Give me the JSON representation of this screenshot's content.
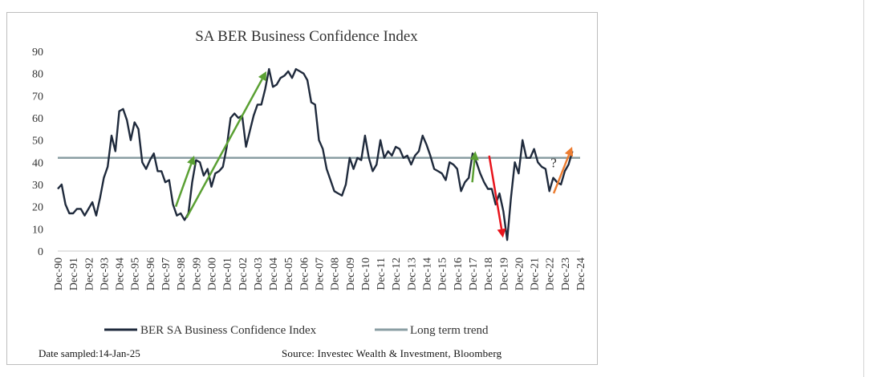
{
  "chart_data": {
    "type": "line",
    "title": "SA BER Business Confidence Index",
    "ylim": [
      0,
      90
    ],
    "y_ticks": [
      0,
      10,
      20,
      30,
      40,
      50,
      60,
      70,
      80,
      90
    ],
    "x_ticks": [
      "Dec-90",
      "Dec-91",
      "Dec-92",
      "Dec-93",
      "Dec-94",
      "Dec-95",
      "Dec-96",
      "Dec-97",
      "Dec-98",
      "Dec-99",
      "Dec-00",
      "Dec-01",
      "Dec-02",
      "Dec-03",
      "Dec-04",
      "Dec-05",
      "Dec-06",
      "Dec-07",
      "Dec-08",
      "Dec-09",
      "Dec-10",
      "Dec-11",
      "Dec-12",
      "Dec-13",
      "Dec-14",
      "Dec-15",
      "Dec-16",
      "Dec-17",
      "Dec-18",
      "Dec-19",
      "Dec-20",
      "Dec-21",
      "Dec-22",
      "Dec-23",
      "Dec-24"
    ],
    "grid": false,
    "legend_position": "bottom",
    "series": [
      {
        "name": "BER SA Business Confidence Index",
        "color": "#1f2a3c",
        "points": [
          [
            1990.92,
            28
          ],
          [
            1991.17,
            30
          ],
          [
            1991.42,
            21
          ],
          [
            1991.67,
            17
          ],
          [
            1991.92,
            17
          ],
          [
            1992.17,
            19
          ],
          [
            1992.42,
            19
          ],
          [
            1992.67,
            16
          ],
          [
            1992.92,
            19
          ],
          [
            1993.17,
            22
          ],
          [
            1993.42,
            16
          ],
          [
            1993.67,
            24
          ],
          [
            1993.92,
            33
          ],
          [
            1994.17,
            38
          ],
          [
            1994.42,
            52
          ],
          [
            1994.67,
            45
          ],
          [
            1994.92,
            63
          ],
          [
            1995.17,
            64
          ],
          [
            1995.42,
            59
          ],
          [
            1995.67,
            50
          ],
          [
            1995.92,
            58
          ],
          [
            1996.17,
            55
          ],
          [
            1996.42,
            40
          ],
          [
            1996.67,
            37
          ],
          [
            1996.92,
            41
          ],
          [
            1997.17,
            44
          ],
          [
            1997.42,
            36
          ],
          [
            1997.67,
            36
          ],
          [
            1997.92,
            31
          ],
          [
            1998.17,
            32
          ],
          [
            1998.42,
            21
          ],
          [
            1998.67,
            16
          ],
          [
            1998.92,
            17
          ],
          [
            1999.17,
            14
          ],
          [
            1999.42,
            17
          ],
          [
            1999.67,
            31
          ],
          [
            1999.92,
            41
          ],
          [
            2000.17,
            40
          ],
          [
            2000.42,
            34
          ],
          [
            2000.67,
            37
          ],
          [
            2000.92,
            29
          ],
          [
            2001.17,
            35
          ],
          [
            2001.42,
            36
          ],
          [
            2001.67,
            38
          ],
          [
            2001.92,
            47
          ],
          [
            2002.17,
            60
          ],
          [
            2002.42,
            62
          ],
          [
            2002.67,
            60
          ],
          [
            2002.92,
            61
          ],
          [
            2003.17,
            47
          ],
          [
            2003.42,
            54
          ],
          [
            2003.67,
            61
          ],
          [
            2003.92,
            66
          ],
          [
            2004.17,
            66
          ],
          [
            2004.42,
            73
          ],
          [
            2004.67,
            82
          ],
          [
            2004.92,
            74
          ],
          [
            2005.17,
            75
          ],
          [
            2005.42,
            78
          ],
          [
            2005.67,
            79
          ],
          [
            2005.92,
            81
          ],
          [
            2006.17,
            78
          ],
          [
            2006.42,
            82
          ],
          [
            2006.67,
            81
          ],
          [
            2006.92,
            80
          ],
          [
            2007.17,
            77
          ],
          [
            2007.42,
            67
          ],
          [
            2007.67,
            66
          ],
          [
            2007.92,
            50
          ],
          [
            2008.17,
            46
          ],
          [
            2008.42,
            37
          ],
          [
            2008.67,
            32
          ],
          [
            2008.92,
            27
          ],
          [
            2009.17,
            26
          ],
          [
            2009.42,
            25
          ],
          [
            2009.67,
            30
          ],
          [
            2009.92,
            42
          ],
          [
            2010.17,
            37
          ],
          [
            2010.42,
            42
          ],
          [
            2010.67,
            41
          ],
          [
            2010.92,
            52
          ],
          [
            2011.17,
            42
          ],
          [
            2011.42,
            36
          ],
          [
            2011.67,
            39
          ],
          [
            2011.92,
            50
          ],
          [
            2012.17,
            42
          ],
          [
            2012.42,
            45
          ],
          [
            2012.67,
            43
          ],
          [
            2012.92,
            47
          ],
          [
            2013.17,
            46
          ],
          [
            2013.42,
            42
          ],
          [
            2013.67,
            43
          ],
          [
            2013.92,
            39
          ],
          [
            2014.17,
            43
          ],
          [
            2014.42,
            45
          ],
          [
            2014.67,
            52
          ],
          [
            2014.92,
            48
          ],
          [
            2015.17,
            43
          ],
          [
            2015.42,
            37
          ],
          [
            2015.67,
            36
          ],
          [
            2015.92,
            35
          ],
          [
            2016.17,
            32
          ],
          [
            2016.42,
            40
          ],
          [
            2016.67,
            39
          ],
          [
            2016.92,
            37
          ],
          [
            2017.17,
            27
          ],
          [
            2017.42,
            31
          ],
          [
            2017.67,
            33
          ],
          [
            2017.92,
            44
          ],
          [
            2018.17,
            40
          ],
          [
            2018.42,
            35
          ],
          [
            2018.67,
            31
          ],
          [
            2018.92,
            28
          ],
          [
            2019.17,
            28
          ],
          [
            2019.42,
            21
          ],
          [
            2019.67,
            26
          ],
          [
            2019.92,
            18
          ],
          [
            2020.17,
            5
          ],
          [
            2020.42,
            24
          ],
          [
            2020.67,
            40
          ],
          [
            2020.92,
            35
          ],
          [
            2021.17,
            50
          ],
          [
            2021.42,
            42
          ],
          [
            2021.67,
            42
          ],
          [
            2021.92,
            46
          ],
          [
            2022.17,
            40
          ],
          [
            2022.42,
            38
          ],
          [
            2022.67,
            37
          ],
          [
            2022.92,
            27
          ],
          [
            2023.17,
            33
          ],
          [
            2023.42,
            31
          ],
          [
            2023.67,
            30
          ],
          [
            2023.92,
            36
          ],
          [
            2024.17,
            39
          ],
          [
            2024.42,
            45
          ]
        ]
      },
      {
        "name": "Long term trend",
        "color": "#8a9ea3",
        "value": 42
      }
    ],
    "annotations": [
      {
        "kind": "arrow",
        "color": "#5aa033",
        "from": [
          1998.6,
          20
        ],
        "to": [
          1999.8,
          43
        ]
      },
      {
        "kind": "arrow",
        "color": "#5aa033",
        "from": [
          1999.3,
          15
        ],
        "to": [
          2004.5,
          81
        ]
      },
      {
        "kind": "arrow",
        "color": "#5aa033",
        "from": [
          2017.9,
          31
        ],
        "to": [
          2018.1,
          45
        ]
      },
      {
        "kind": "arrow",
        "color": "#e8141c",
        "from": [
          2019.0,
          43
        ],
        "to": [
          2019.9,
          6
        ]
      },
      {
        "kind": "arrow",
        "color": "#ed7d31",
        "from": [
          2023.2,
          26
        ],
        "to": [
          2024.4,
          47
        ]
      },
      {
        "kind": "text",
        "text": "?",
        "position": [
          2023.2,
          40
        ]
      }
    ]
  },
  "footer": {
    "date_sampled": "Date sampled:14-Jan-25",
    "source": "Source: Investec Wealth & Investment, Bloomberg"
  }
}
